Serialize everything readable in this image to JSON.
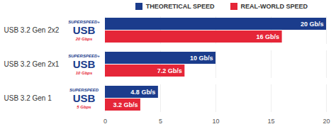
{
  "chart_data": {
    "type": "bar",
    "orientation": "horizontal",
    "categories": [
      "USB 3.2 Gen 2x2",
      "USB 3.2 Gen 2x1",
      "USB 3.2 Gen 1"
    ],
    "series": [
      {
        "name": "THEORETICAL SPEED",
        "color": "#1b3c8c",
        "values": [
          20,
          10,
          4.8
        ],
        "value_labels": [
          "20 Gb/s",
          "10 Gb/s",
          "4.8 Gb/s"
        ]
      },
      {
        "name": "REAL-WORLD SPEED",
        "color": "#e52638",
        "values": [
          16,
          7.2,
          3.2
        ],
        "value_labels": [
          "16 Gb/s",
          "7.2 Gb/s",
          "3.2 Gb/s"
        ]
      }
    ],
    "logos": [
      {
        "top": "SUPERSPEED+",
        "main": "USB",
        "bottom": "20 Gbps"
      },
      {
        "top": "SUPERSPEED+",
        "main": "USB",
        "bottom": "10 Gbps"
      },
      {
        "top": "SUPERSPEED",
        "main": "USB",
        "bottom": "5 Gbps"
      }
    ],
    "xlim": [
      0,
      20
    ],
    "xticks": [
      0,
      5,
      10,
      15,
      20
    ],
    "grid": true,
    "data_labels": true,
    "legend": "top"
  }
}
